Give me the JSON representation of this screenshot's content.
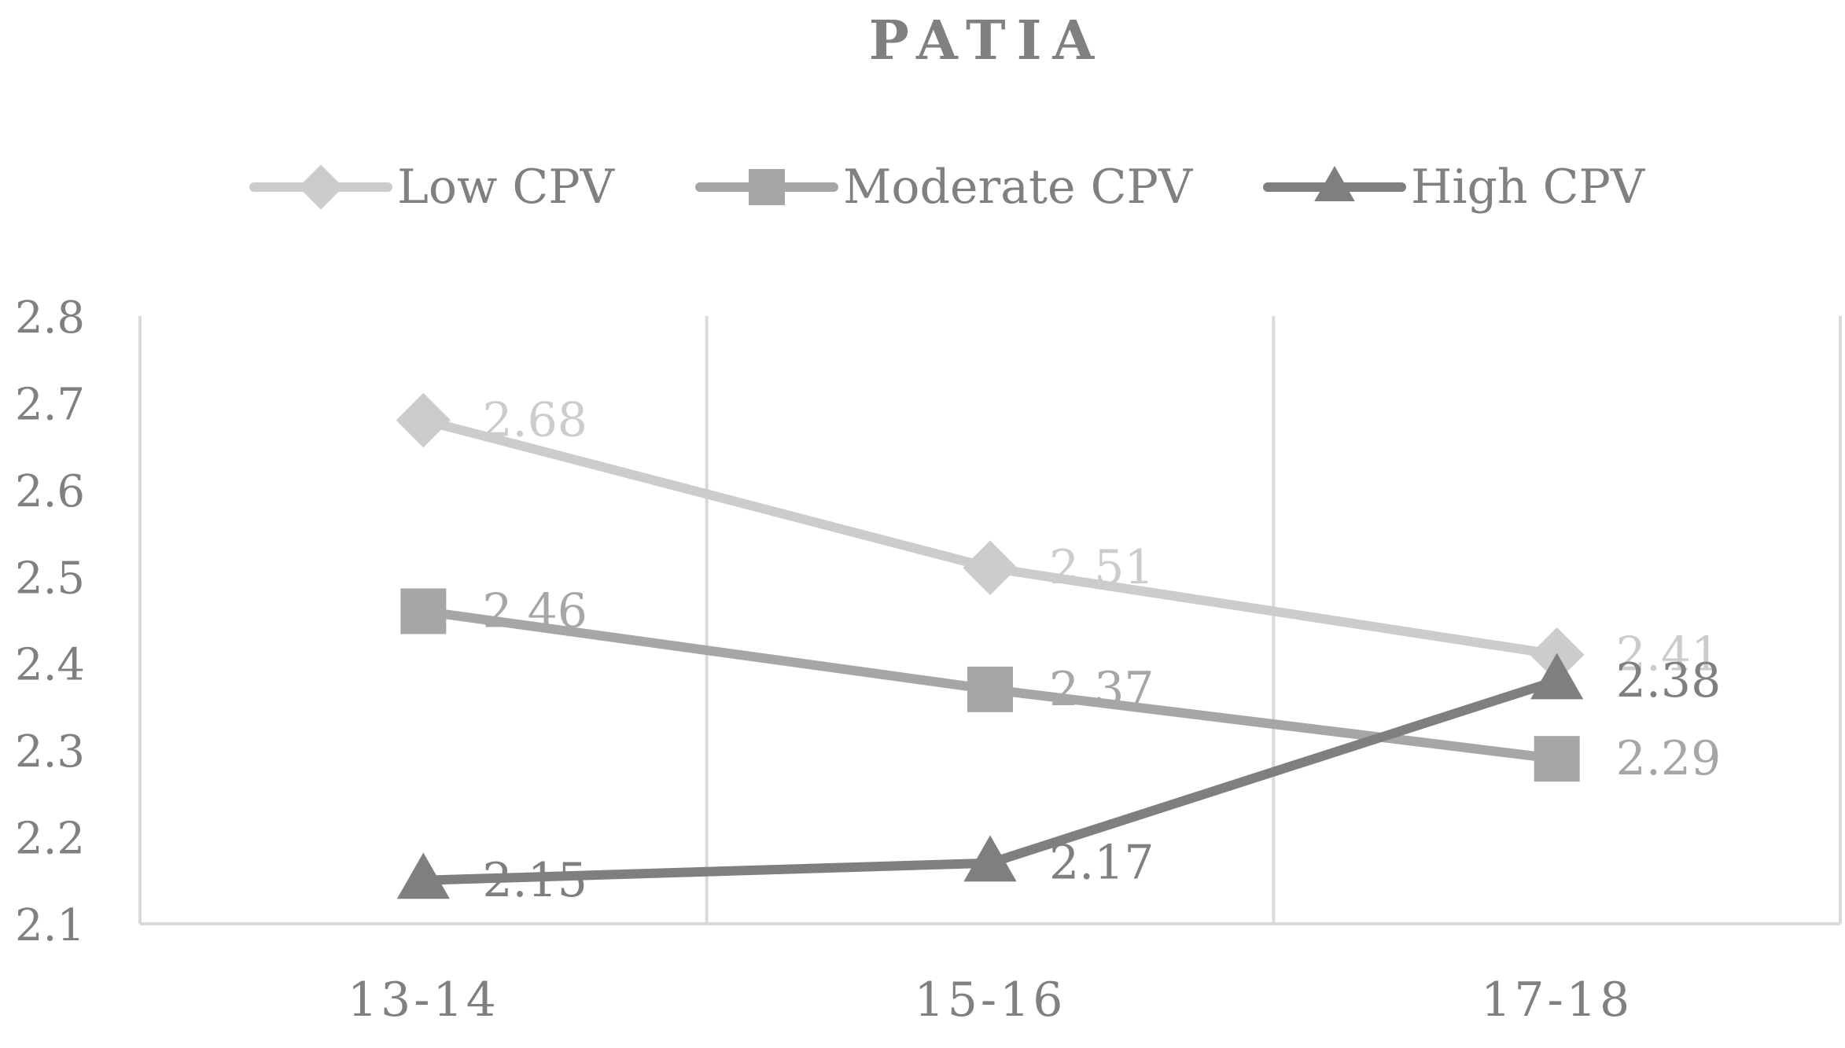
{
  "chart_data": {
    "type": "line",
    "title": "PATIA",
    "categories": [
      "13-14",
      "15-16",
      "17-18"
    ],
    "xlabel": "",
    "ylabel": "",
    "ylim": [
      2.1,
      2.8
    ],
    "yticks": [
      "2.1",
      "2.2",
      "2.3",
      "2.4",
      "2.5",
      "2.6",
      "2.7",
      "2.8"
    ],
    "grid": "vertical",
    "legend_position": "top",
    "series": [
      {
        "name": "Low CPV",
        "marker": "diamond",
        "color": "#cccccc",
        "values": [
          2.68,
          2.51,
          2.41
        ],
        "labels": [
          "2.68",
          "2.51",
          "2.41"
        ]
      },
      {
        "name": "Moderate CPV",
        "marker": "square",
        "color": "#a6a6a6",
        "values": [
          2.46,
          2.37,
          2.29
        ],
        "labels": [
          "2.46",
          "2.37",
          "2.29"
        ]
      },
      {
        "name": "High CPV",
        "marker": "triangle",
        "color": "#7f7f7f",
        "values": [
          2.15,
          2.17,
          2.38
        ],
        "labels": [
          "2.15",
          "2.17",
          "2.38"
        ]
      }
    ],
    "colors": {
      "text": "#808080",
      "grid": "#d9d9d9",
      "axis": "#d9d9d9"
    }
  }
}
